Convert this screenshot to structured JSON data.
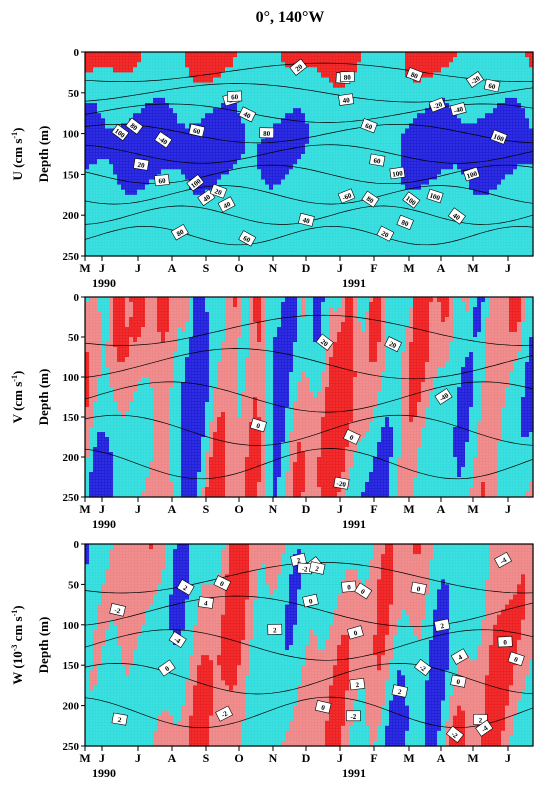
{
  "title": "0°, 140°W",
  "colors": {
    "strong_positive": "#ee2222",
    "weak_positive": "#ee8888",
    "weak_negative": "#33dddd",
    "strong_negative": "#2222dd",
    "contour": "#000000"
  },
  "month_ticks": [
    "M",
    "J",
    "J",
    "A",
    "S",
    "O",
    "N",
    "D",
    "J",
    "F",
    "M",
    "A",
    "M",
    "J"
  ],
  "year_labels": [
    "1990",
    "1991"
  ],
  "depth_ticks": [
    "0",
    "50",
    "100",
    "150",
    "200",
    "250"
  ],
  "chart_data": [
    {
      "type": "heatmap",
      "panel": "U",
      "ylabel_main": "U (cm s",
      "ylabel_sup": "-1",
      "ylabel_close": ")",
      "ylabel_depth": "Depth (m)",
      "y_range_m": [
        0,
        250
      ],
      "x_range": [
        "1990-05",
        "1991-07"
      ],
      "color_scheme": "red=eastward strong, cyan=weak, blue=westward undercurrent core >100",
      "contour_labels": [
        "-60",
        "-20",
        "-40",
        "-20",
        "20",
        "80",
        "100",
        "60",
        "80",
        "100",
        "20",
        "40",
        "60",
        "80",
        "40",
        "60",
        "100",
        "100",
        "60",
        "80",
        "20",
        "60",
        "-40",
        "-20",
        "80",
        "40",
        "20",
        "40",
        "60",
        "100",
        "20",
        "100",
        "80",
        "40",
        "60",
        "100",
        "80",
        "40"
      ]
    },
    {
      "type": "heatmap",
      "panel": "V",
      "ylabel_main": "V (cm s",
      "ylabel_sup": "-1",
      "ylabel_close": ")",
      "ylabel_depth": "Depth (m)",
      "y_range_m": [
        0,
        250
      ],
      "x_range": [
        "1990-05",
        "1991-07"
      ],
      "contour_labels": [
        "0",
        "20",
        "0",
        "20",
        "-40",
        "-20"
      ]
    },
    {
      "type": "heatmap",
      "panel": "W",
      "ylabel_main": "W (10",
      "ylabel_sup": "-3",
      "ylabel_close": " cm s",
      "ylabel_sup2": "-1",
      "ylabel_close2": ")",
      "ylabel_depth": "Depth (m)",
      "y_range_m": [
        0,
        250
      ],
      "x_range": [
        "1990-05",
        "1991-07"
      ],
      "contour_labels": [
        "2",
        "0",
        "-2",
        "0",
        "2",
        "-4",
        "0",
        "-2",
        "2",
        "0",
        "4",
        "0",
        "-2",
        "2",
        "-4",
        "0",
        "2",
        "-2",
        "0",
        "2",
        "0",
        "-4",
        "2",
        "0",
        "-2",
        "4",
        "0",
        "2",
        "-2",
        "0",
        "0",
        "2"
      ]
    }
  ]
}
